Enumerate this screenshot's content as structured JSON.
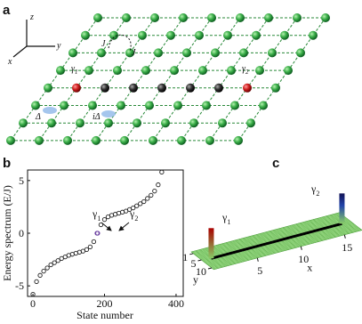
{
  "panel_labels": [
    "a",
    "b",
    "c"
  ],
  "lattice": {
    "axes": [
      "z",
      "y",
      "x"
    ],
    "hopping": [
      "J",
      "J"
    ],
    "pairing": [
      "Δ",
      "iΔ"
    ],
    "edge_modes": [
      {
        "symbol": "γ",
        "sub": "1"
      },
      {
        "symbol": "γ",
        "sub": "2"
      }
    ]
  },
  "chart_data": [
    {
      "type": "scatter",
      "xlabel": "State number",
      "ylabel": "Energy spectrum (E/J)",
      "xlim": [
        -15,
        420
      ],
      "ylim": [
        -6,
        6
      ],
      "xticks": [
        0,
        200,
        400
      ],
      "yticks": [
        -5,
        0,
        5
      ],
      "series": [
        {
          "color": "#222222",
          "x": [
            0,
            10,
            20,
            30,
            40,
            50,
            60,
            70,
            80,
            90,
            100,
            110,
            120,
            130,
            140,
            150,
            160,
            170,
            190,
            200,
            210,
            220,
            230,
            240,
            250,
            260,
            270,
            280,
            290,
            300,
            310,
            320,
            330,
            340,
            350,
            360
          ],
          "values": [
            -5.8,
            -4.6,
            -4.0,
            -3.6,
            -3.3,
            -3.0,
            -2.8,
            -2.6,
            -2.4,
            -2.25,
            -2.1,
            -2.0,
            -1.9,
            -1.8,
            -1.7,
            -1.55,
            -1.3,
            -0.8,
            0.8,
            1.3,
            1.55,
            1.7,
            1.8,
            1.9,
            2.0,
            2.1,
            2.25,
            2.4,
            2.6,
            2.8,
            3.0,
            3.3,
            3.6,
            4.0,
            4.6,
            5.8
          ]
        },
        {
          "color": "#6a3fa0",
          "x": [
            179,
            181
          ],
          "values": [
            0,
            0
          ]
        }
      ],
      "annotations": [
        {
          "symbol": "γ",
          "sub": "1"
        },
        {
          "symbol": "γ",
          "sub": "2"
        }
      ]
    },
    {
      "type": "surface3d",
      "xlabel": "x",
      "ylabel": "y",
      "xlim": [
        0,
        17
      ],
      "ylim": [
        0,
        11
      ],
      "xticks": [
        5,
        10,
        15
      ],
      "yticks": [
        1,
        5,
        10
      ],
      "annotations": [
        {
          "symbol": "γ",
          "sub": "1"
        },
        {
          "symbol": "γ",
          "sub": "2"
        }
      ]
    }
  ]
}
